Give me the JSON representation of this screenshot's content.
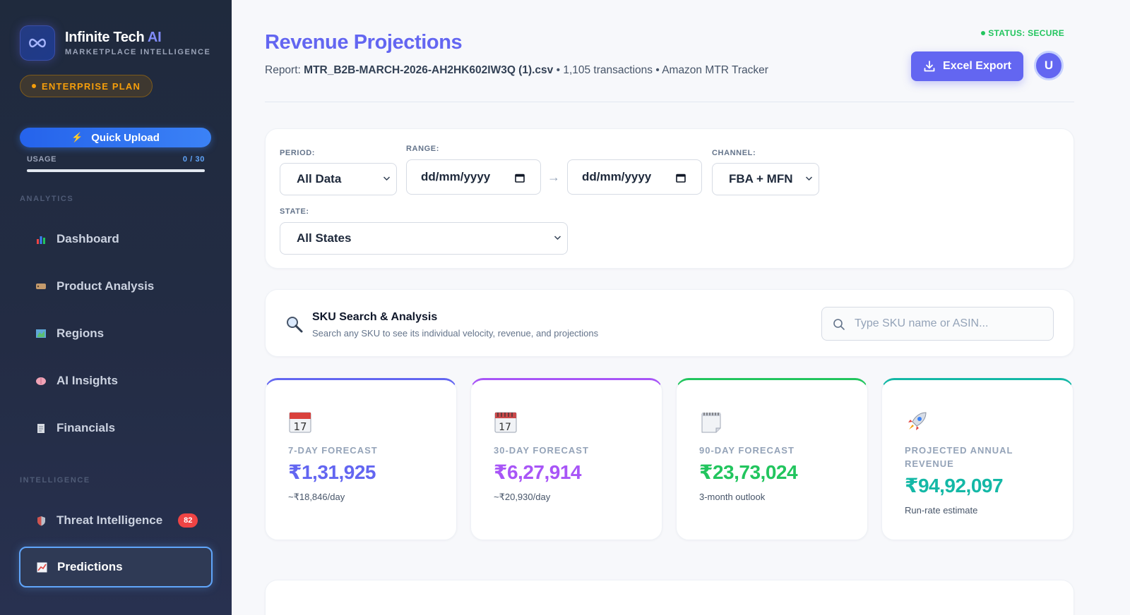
{
  "colors": {
    "accent": "#6366f1",
    "secure": "#22c55e",
    "warning": "#f59e0b",
    "danger": "#ef4444"
  },
  "brand": {
    "name": "Infinite Tech",
    "name_ai": "AI",
    "subtitle": "MARKETPLACE INTELLIGENCE",
    "logo_icon": "infinity-icon"
  },
  "plan_badge": "ENTERPRISE PLAN",
  "quick_upload": {
    "label": "Quick Upload",
    "icon": "bolt-icon"
  },
  "usage": {
    "label": "USAGE",
    "count": "0 / 30",
    "fraction": 0
  },
  "sidebar": {
    "sections": [
      {
        "title": "ANALYTICS",
        "items": [
          {
            "label": "Dashboard",
            "icon": "bar-chart-icon"
          },
          {
            "label": "Product Analysis",
            "icon": "tag-icon"
          },
          {
            "label": "Regions",
            "icon": "map-icon"
          },
          {
            "label": "AI Insights",
            "icon": "brain-icon"
          },
          {
            "label": "Financials",
            "icon": "receipt-icon"
          }
        ]
      },
      {
        "title": "INTELLIGENCE",
        "items": [
          {
            "label": "Threat Intelligence",
            "icon": "shield-icon",
            "badge": "82"
          },
          {
            "label": "Predictions",
            "icon": "trend-chart-icon",
            "active": true
          }
        ]
      }
    ]
  },
  "header": {
    "title": "Revenue Projections",
    "report_prefix": "Report:",
    "report_file": "MTR_B2B-MARCH-2026-AH2HK602IW3Q (1).csv",
    "report_meta": "• 1,105 transactions • Amazon MTR Tracker",
    "status": "STATUS: SECURE",
    "export_label": "Excel Export",
    "avatar_initial": "U"
  },
  "filters": {
    "period": {
      "label": "PERIOD:",
      "value": "All Data"
    },
    "range": {
      "label": "RANGE:",
      "from_placeholder": "dd/mm/yyyy",
      "to_placeholder": "dd/mm/yyyy",
      "arrow": "→"
    },
    "channel": {
      "label": "CHANNEL:",
      "value": "FBA + MFN"
    },
    "state": {
      "label": "STATE:",
      "value": "All States"
    }
  },
  "sku_search": {
    "title": "SKU Search & Analysis",
    "subtitle": "Search any SKU to see its individual velocity, revenue, and projections",
    "placeholder": "Type SKU name or ASIN..."
  },
  "kpis": [
    {
      "label": "7-DAY FORECAST",
      "value": "₹1,31,925",
      "sub": "~₹18,846/day",
      "color": "#6366f1",
      "border": "#6366f1",
      "icon": "calendar-17-icon"
    },
    {
      "label": "30-DAY FORECAST",
      "value": "₹6,27,914",
      "sub": "~₹20,930/day",
      "color": "#a855f7",
      "border": "#a855f7",
      "icon": "calendar-spiral-icon"
    },
    {
      "label": "90-DAY FORECAST",
      "value": "₹23,73,024",
      "sub": "3-month outlook",
      "color": "#22c55e",
      "border": "#22c55e",
      "icon": "notepad-icon"
    },
    {
      "label": "PROJECTED ANNUAL REVENUE",
      "value": "₹94,92,097",
      "sub": "Run-rate estimate",
      "color": "#14b8a6",
      "border": "#14b8a6",
      "icon": "rocket-icon"
    }
  ]
}
